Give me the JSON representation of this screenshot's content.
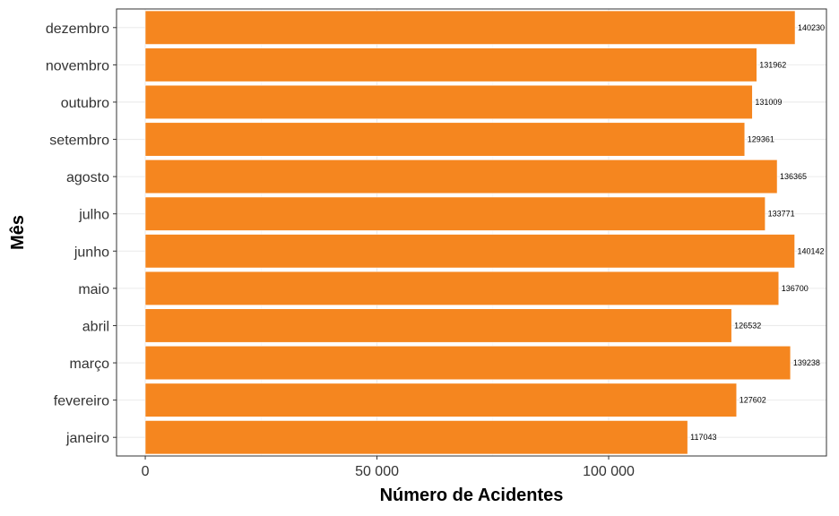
{
  "chart_data": {
    "type": "bar",
    "orientation": "horizontal",
    "categories": [
      "janeiro",
      "fevereiro",
      "março",
      "abril",
      "maio",
      "junho",
      "julho",
      "agosto",
      "setembro",
      "outubro",
      "novembro",
      "dezembro"
    ],
    "values": [
      117043,
      127602,
      139238,
      126532,
      136700,
      140142,
      133771,
      136365,
      129361,
      131009,
      131962,
      140230
    ],
    "value_labels": [
      "117043",
      "127602",
      "139238",
      "126532",
      "136700",
      "140142",
      "133771",
      "136365",
      "129361",
      "131009",
      "131962",
      "140230"
    ],
    "xlabel": "Número de Acidentes",
    "ylabel": "Mês",
    "x_ticks": [
      0,
      50000,
      100000
    ],
    "x_tick_labels": [
      "0",
      "50 000",
      "100 000"
    ],
    "xlim": [
      -6200,
      147000
    ],
    "grid": true,
    "bar_color": "#F5861F"
  }
}
